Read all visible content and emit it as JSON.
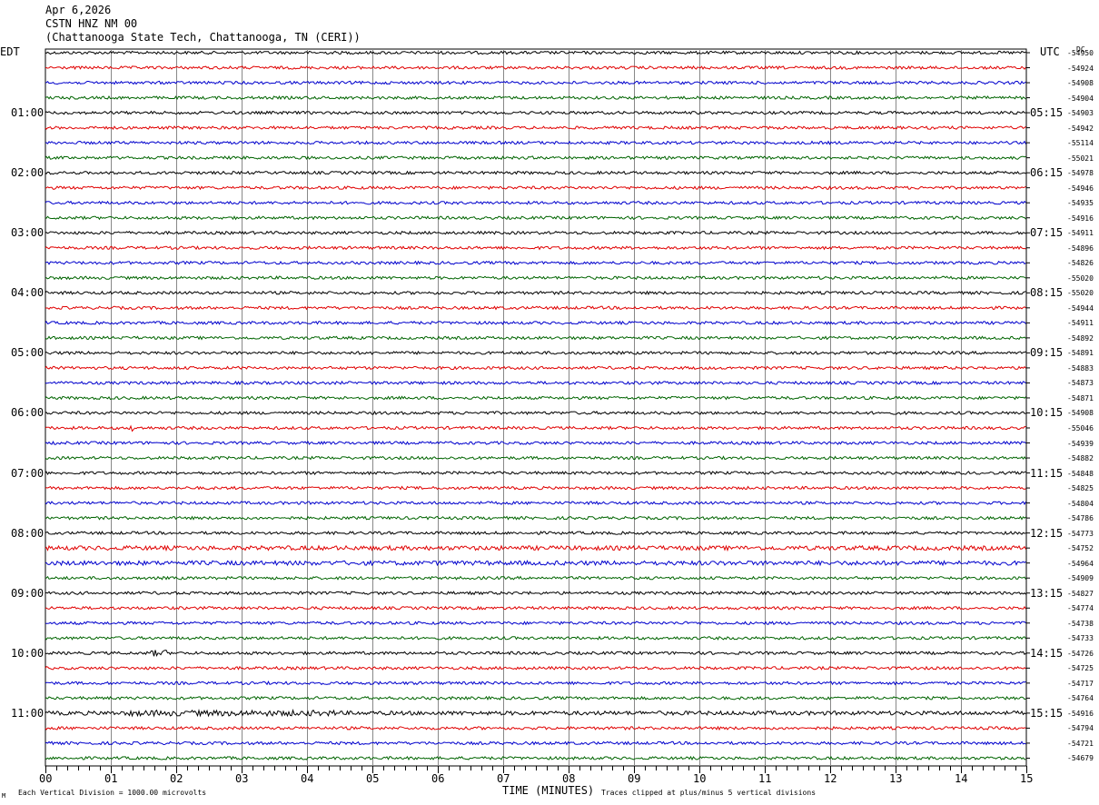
{
  "header": {
    "date": "Apr 6,2026",
    "station": "CSTN HNZ NM 00",
    "location": "(Chattanooga State Tech, Chattanooga, TN (CERI))"
  },
  "left_tz": "EDT",
  "right_tz": "UTC",
  "dc_header": "DC",
  "footer": {
    "scale_note": "Each Vertical Division = 1000.00 microvolts",
    "xlabel": "TIME (MINUTES)",
    "clip_note": "Traces clipped at plus/minus 5 vertical divisions",
    "corner_mark": "M"
  },
  "colors": {
    "c0": "#000000",
    "c1": "#e00000",
    "c2": "#0000cc",
    "c3": "#006400",
    "grid": "#888888"
  },
  "chart_data": {
    "type": "line",
    "title": "CSTN HNZ NM 00",
    "xlabel": "TIME (MINUTES)",
    "x_ticks": [
      "00",
      "01",
      "02",
      "03",
      "04",
      "05",
      "06",
      "07",
      "08",
      "09",
      "10",
      "11",
      "12",
      "13",
      "14",
      "15"
    ],
    "xlim": [
      0,
      15
    ],
    "left_time_labels": [
      "01:00",
      "02:00",
      "03:00",
      "04:00",
      "05:00",
      "06:00",
      "07:00",
      "08:00",
      "09:00",
      "10:00",
      "11:00"
    ],
    "right_time_labels": [
      "05:15",
      "06:15",
      "07:15",
      "08:15",
      "09:15",
      "10:15",
      "11:15",
      "12:15",
      "13:15",
      "14:15",
      "15:15"
    ],
    "trace_color_cycle": [
      "black",
      "red",
      "blue",
      "green"
    ],
    "traces_count": 48,
    "trace_dc_offsets": [
      -54950,
      -54924,
      -54908,
      -54904,
      -54903,
      -54942,
      -55114,
      -55021,
      -54978,
      -54946,
      -54935,
      -54916,
      -54911,
      -54896,
      -54826,
      -55020,
      -55020,
      -54944,
      -54911,
      -54892,
      -54891,
      -54883,
      -54873,
      -54871,
      -54908,
      -55046,
      -54939,
      -54882,
      -54848,
      -54825,
      -54804,
      -54786,
      -54773,
      -54752,
      -54964,
      -54909,
      -54827,
      -54774,
      -54738,
      -54733,
      -54726,
      -54725,
      -54717,
      -54764,
      -54916,
      -54794,
      -54721,
      -54679
    ],
    "grid": true
  }
}
